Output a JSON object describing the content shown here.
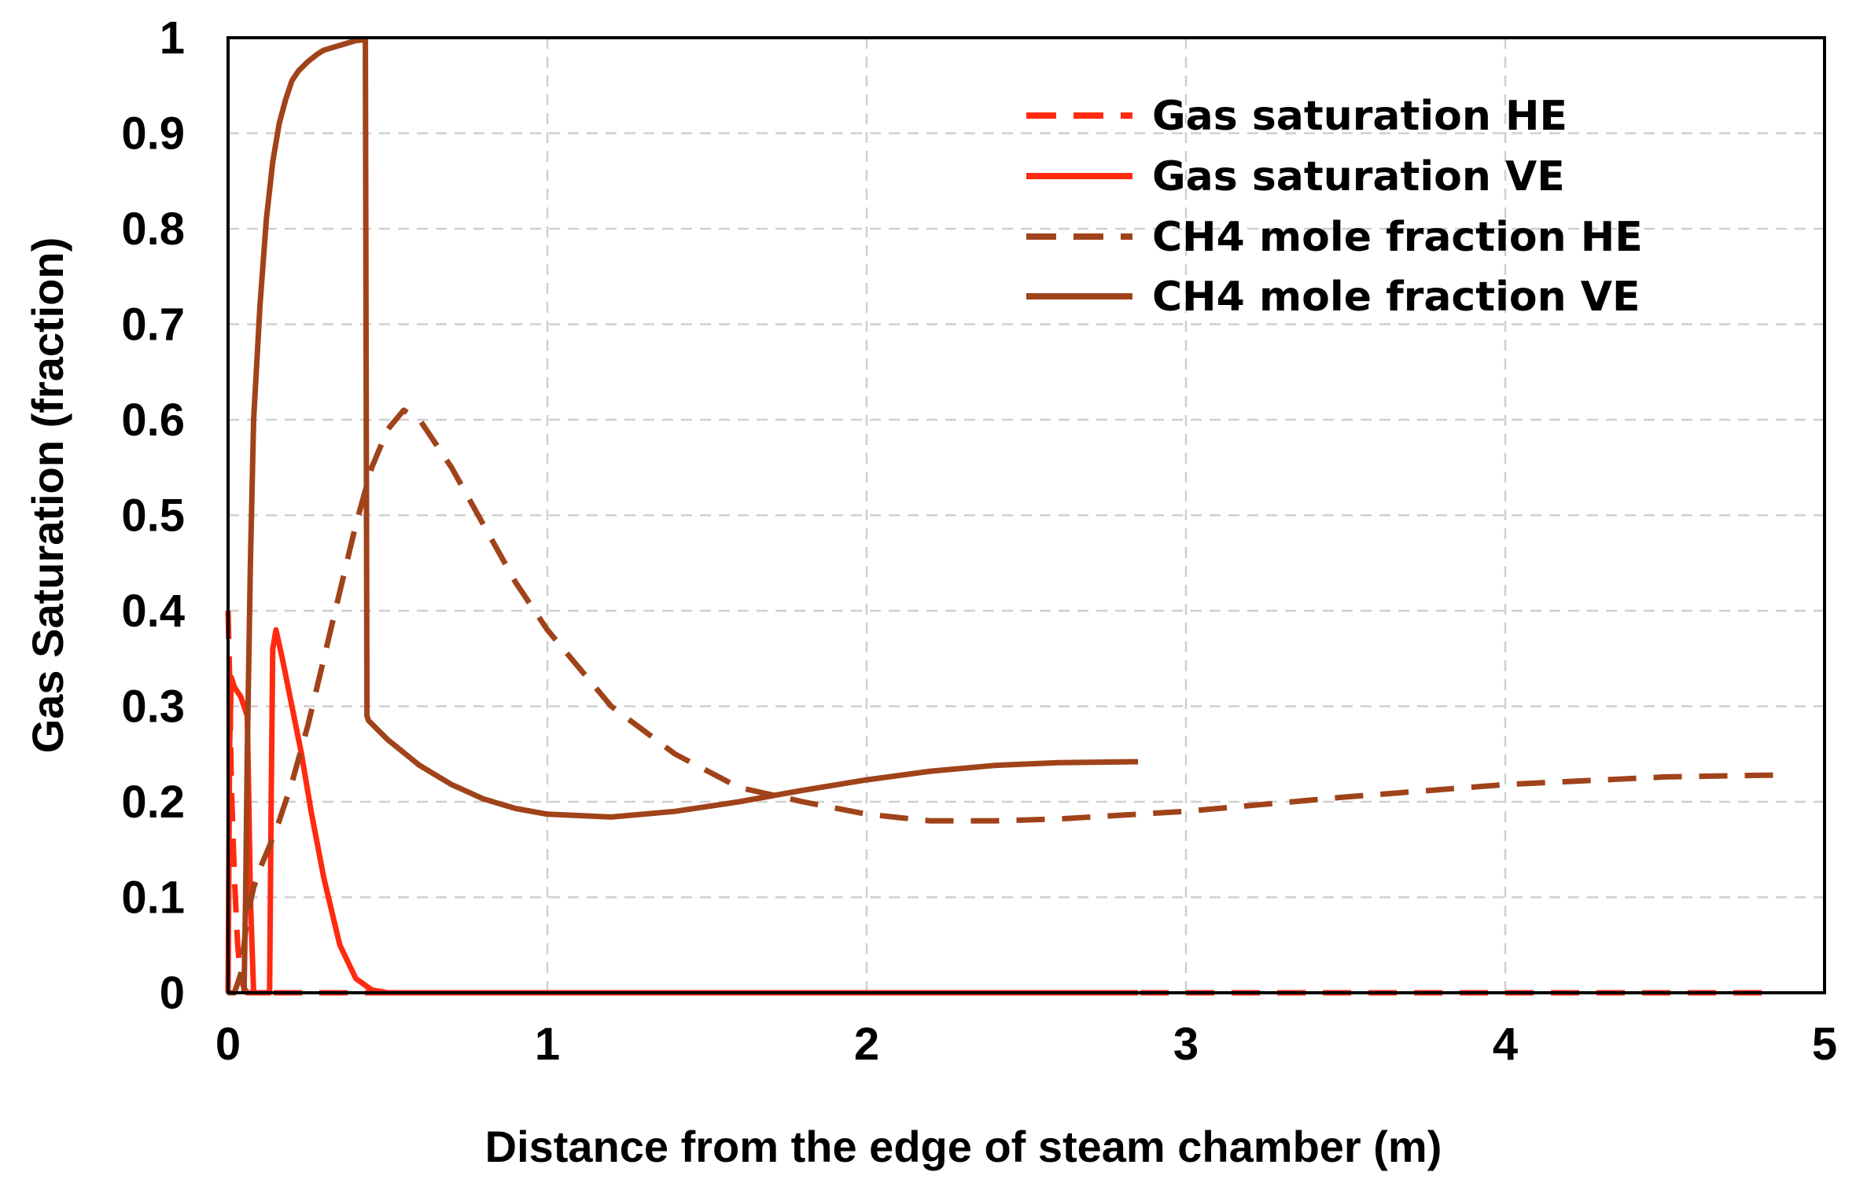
{
  "chart_data": {
    "type": "line",
    "title": "",
    "xlabel": "Distance from the edge of steam chamber (m)",
    "ylabel": "Gas Saturation (fraction)",
    "xlim": [
      0,
      5
    ],
    "ylim": [
      0,
      1
    ],
    "xticks": [
      "0",
      "1",
      "2",
      "3",
      "4",
      "5"
    ],
    "yticks": [
      "0",
      "0.1",
      "0.2",
      "0.3",
      "0.4",
      "0.5",
      "0.6",
      "0.7",
      "0.8",
      "0.9",
      "1"
    ],
    "grid": true,
    "legend_position": "top-right",
    "colors": {
      "gas": "#ff2a10",
      "ch4": "#a0431a",
      "grid": "#cfcfcf",
      "frame": "#000000"
    },
    "series": [
      {
        "name": "Gas saturation HE",
        "style": "dashed",
        "color": "#ff2a10",
        "x": [
          0,
          0.005,
          0.01,
          0.02,
          0.03,
          0.04,
          0.05,
          0.06,
          0.08,
          0.1,
          0.2,
          0.4,
          1,
          2,
          3,
          4,
          4.85
        ],
        "y": [
          0.4,
          0.33,
          0.22,
          0.12,
          0.05,
          0.015,
          0.005,
          0,
          0,
          0,
          0,
          0,
          0,
          0,
          0,
          0,
          0
        ]
      },
      {
        "name": "Gas saturation VE",
        "style": "solid",
        "color": "#ff2a10",
        "x": [
          0,
          0.005,
          0.01,
          0.02,
          0.04,
          0.06,
          0.065,
          0.07,
          0.08,
          0.1,
          0.12,
          0.13,
          0.135,
          0.14,
          0.15,
          0.17,
          0.2,
          0.23,
          0.26,
          0.3,
          0.35,
          0.4,
          0.45,
          0.5,
          1,
          2,
          2.85
        ],
        "y": [
          0,
          0.26,
          0.33,
          0.32,
          0.31,
          0.29,
          0.2,
          0.1,
          0,
          0,
          0,
          0,
          0.2,
          0.36,
          0.38,
          0.35,
          0.3,
          0.25,
          0.19,
          0.12,
          0.05,
          0.015,
          0.003,
          0,
          0,
          0,
          0
        ]
      },
      {
        "name": "CH4 mole fraction HE",
        "style": "dashed",
        "color": "#a0431a",
        "x": [
          0,
          0.02,
          0.04,
          0.05,
          0.06,
          0.08,
          0.1,
          0.15,
          0.2,
          0.25,
          0.3,
          0.35,
          0.4,
          0.45,
          0.5,
          0.55,
          0.6,
          0.7,
          0.8,
          0.9,
          1,
          1.2,
          1.4,
          1.6,
          1.8,
          2,
          2.2,
          2.4,
          2.6,
          2.8,
          3,
          3.5,
          4,
          4.5,
          4.85
        ],
        "y": [
          0,
          0,
          0.02,
          0.05,
          0.08,
          0.11,
          0.13,
          0.17,
          0.22,
          0.28,
          0.35,
          0.42,
          0.49,
          0.55,
          0.59,
          0.61,
          0.6,
          0.55,
          0.49,
          0.43,
          0.38,
          0.3,
          0.25,
          0.215,
          0.2,
          0.187,
          0.18,
          0.18,
          0.182,
          0.186,
          0.19,
          0.205,
          0.218,
          0.226,
          0.228
        ]
      },
      {
        "name": "CH4 mole fraction VE",
        "style": "solid",
        "color": "#a0431a",
        "x": [
          0.05,
          0.055,
          0.06,
          0.07,
          0.08,
          0.1,
          0.12,
          0.14,
          0.16,
          0.18,
          0.2,
          0.22,
          0.25,
          0.28,
          0.3,
          0.33,
          0.36,
          0.4,
          0.43,
          0.435,
          0.44,
          0.5,
          0.6,
          0.7,
          0.8,
          0.9,
          1,
          1.2,
          1.4,
          1.6,
          1.8,
          2,
          2.2,
          2.4,
          2.6,
          2.85
        ],
        "y": [
          0,
          0.1,
          0.25,
          0.45,
          0.6,
          0.72,
          0.81,
          0.87,
          0.91,
          0.935,
          0.955,
          0.965,
          0.975,
          0.983,
          0.987,
          0.99,
          0.993,
          0.997,
          0.998,
          0.29,
          0.285,
          0.265,
          0.238,
          0.218,
          0.203,
          0.193,
          0.187,
          0.184,
          0.19,
          0.2,
          0.212,
          0.223,
          0.232,
          0.238,
          0.241,
          0.242
        ]
      }
    ]
  }
}
